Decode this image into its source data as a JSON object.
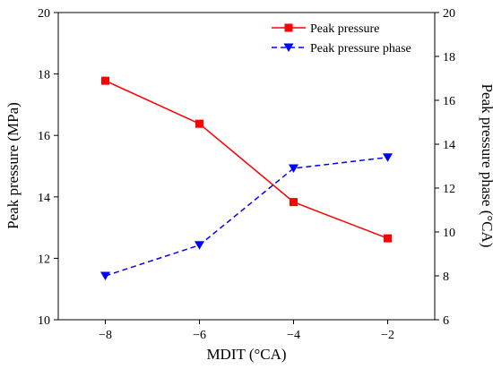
{
  "chart_data": {
    "type": "line",
    "x": [
      -8,
      -6,
      -4,
      -2
    ],
    "xlabel": "MDIT (°CA)",
    "xlim": [
      -9,
      -1
    ],
    "xticks": [
      -8,
      -6,
      -4,
      -2
    ],
    "xtick_labels": [
      "−8",
      "−6",
      "−4",
      "−2"
    ],
    "ylabel_left": "Peak pressure (MPa)",
    "ylim_left": [
      10,
      20
    ],
    "yticks_left": [
      10,
      12,
      14,
      16,
      18,
      20
    ],
    "ylabel_right": "Peak pressure phase (°CA)",
    "ylim_right": [
      6,
      20
    ],
    "yticks_right": [
      6,
      8,
      10,
      12,
      14,
      16,
      18,
      20
    ],
    "grid": false,
    "legend_position": "top-right",
    "series": [
      {
        "name": "Peak pressure",
        "axis": "left",
        "values": [
          17.78,
          16.38,
          13.83,
          12.65
        ],
        "color": "#ff0000",
        "line_style": "solid",
        "marker": "square"
      },
      {
        "name": "Peak pressure phase",
        "axis": "right",
        "values": [
          8.0,
          9.4,
          12.9,
          13.4
        ],
        "color": "#0000ff",
        "line_style": "dashed",
        "marker": "triangle-down"
      }
    ]
  }
}
